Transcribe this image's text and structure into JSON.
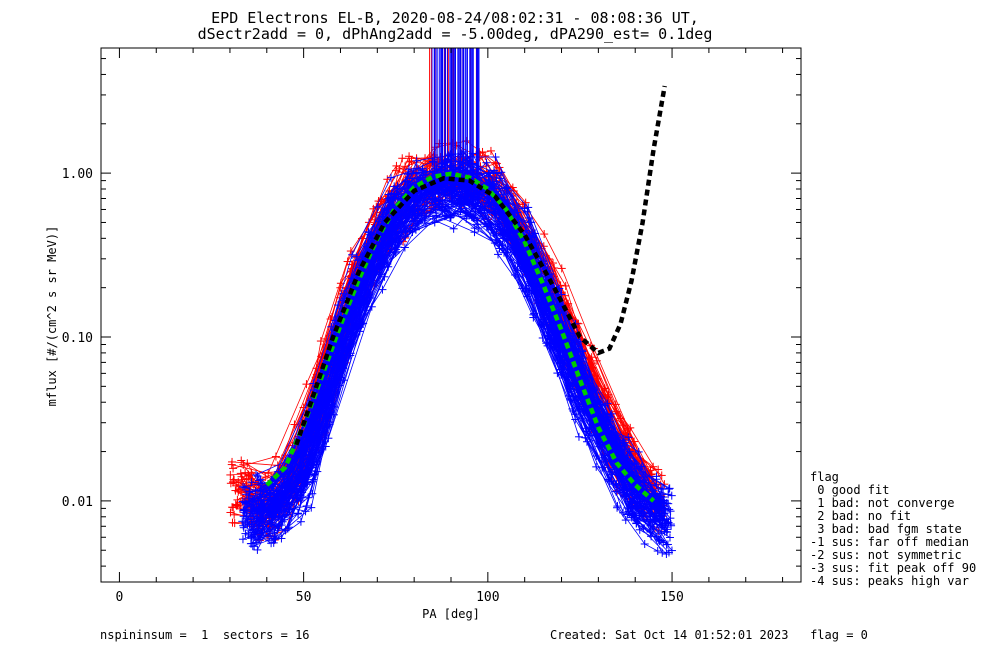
{
  "chart_data": {
    "type": "line",
    "title": "EPD Electrons EL-B, 2020-08-24/08:02:31 - 08:08:36 UT,",
    "subtitle": "dSectr2add = 0, dPhAng2add = -5.00deg, dPA290_est=   0.1deg",
    "xlabel": "PA [deg]",
    "ylabel": "mflux [#/(cm^2 s sr MeV)]",
    "xlim": [
      -5,
      185
    ],
    "ylim": [
      0.0032,
      5.8
    ],
    "yscale": "log",
    "xticks": [
      0,
      50,
      100,
      150
    ],
    "yticks": [
      0.01,
      0.1,
      1.0
    ],
    "ytick_labels": [
      "0.01",
      "0.10",
      "1.00"
    ],
    "colors": {
      "red": "#ff0000",
      "blue": "#0000ff",
      "green": "#00cc00",
      "black": "#000000"
    },
    "series": [
      {
        "color": "red",
        "count": 60,
        "x": [
          33,
          40,
          50,
          60,
          70,
          80,
          90,
          100,
          110,
          120,
          130,
          140,
          145
        ],
        "y": [
          0.012,
          0.008,
          0.018,
          0.12,
          0.42,
          0.85,
          1.0,
          0.85,
          0.42,
          0.12,
          0.04,
          0.014,
          0.01
        ]
      },
      {
        "color": "blue",
        "count": 110,
        "x": [
          36,
          42,
          50,
          60,
          70,
          80,
          90,
          100,
          110,
          120,
          130,
          140,
          147
        ],
        "y": [
          0.008,
          0.009,
          0.014,
          0.09,
          0.35,
          0.72,
          0.82,
          0.72,
          0.35,
          0.09,
          0.028,
          0.011,
          0.008
        ]
      },
      {
        "color": "green",
        "style": "dashed",
        "x": [
          40,
          45,
          50,
          55,
          60,
          65,
          70,
          75,
          80,
          85,
          90,
          95,
          100,
          105,
          110,
          115,
          120,
          125,
          130,
          135,
          140,
          145
        ],
        "y": [
          0.0125,
          0.016,
          0.029,
          0.058,
          0.118,
          0.225,
          0.4,
          0.62,
          0.82,
          0.95,
          0.99,
          0.94,
          0.8,
          0.6,
          0.38,
          0.21,
          0.11,
          0.055,
          0.028,
          0.017,
          0.0125,
          0.01
        ]
      },
      {
        "color": "black",
        "style": "dashed",
        "x": [
          48,
          52,
          58,
          65,
          72,
          80,
          88,
          95,
          102,
          110,
          118,
          125,
          130,
          133,
          136,
          139,
          142,
          145,
          148
        ],
        "y": [
          0.022,
          0.04,
          0.1,
          0.25,
          0.5,
          0.78,
          0.93,
          0.9,
          0.72,
          0.42,
          0.2,
          0.1,
          0.08,
          0.085,
          0.12,
          0.22,
          0.5,
          1.4,
          3.4
        ]
      }
    ],
    "legend": {
      "placement": "right",
      "title": "flag",
      "entries": [
        " 0 good fit",
        " 1 bad: not converge",
        " 2 bad: no fit",
        " 3 bad: bad fgm state",
        "-1 sus: far off median",
        "-2 sus: not symmetric",
        "-3 sus: fit peak off 90",
        "-4 sus: peaks high var"
      ]
    }
  },
  "footer": {
    "left": "nspininsum =  1  sectors = 16",
    "right": "Created: Sat Oct 14 01:52:01 2023   flag = 0"
  }
}
